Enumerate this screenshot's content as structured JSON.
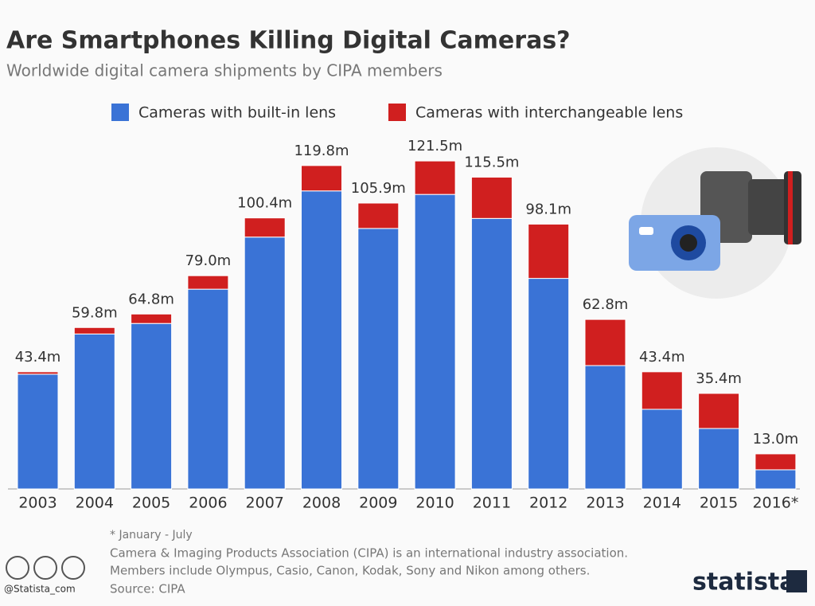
{
  "chart_data": {
    "type": "stacked-bar",
    "title": "Are Smartphones Killing Digital Cameras?",
    "subtitle": "Worldwide digital camera shipments by CIPA members",
    "categories": [
      "2003",
      "2004",
      "2005",
      "2006",
      "2007",
      "2008",
      "2009",
      "2010",
      "2011",
      "2012",
      "2013",
      "2014",
      "2015",
      "2016*"
    ],
    "series": [
      {
        "name": "Cameras with built-in lens",
        "color": "#3a73d6",
        "values": [
          42.5,
          57.4,
          61.3,
          74.0,
          93.3,
          110.4,
          96.5,
          109.1,
          100.2,
          78.0,
          45.7,
          29.5,
          22.4,
          7.1
        ]
      },
      {
        "name": "Cameras with interchangeable lens",
        "color": "#d01f1f",
        "values": [
          0.9,
          2.4,
          3.5,
          5.0,
          7.1,
          9.4,
          9.4,
          12.4,
          15.3,
          20.1,
          17.1,
          13.9,
          13.0,
          5.9
        ]
      }
    ],
    "totals": {
      "values": [
        43.4,
        59.8,
        64.8,
        79.0,
        100.4,
        119.8,
        105.9,
        121.5,
        115.5,
        98.1,
        62.8,
        43.4,
        35.4,
        13.0
      ],
      "value_labels": [
        "43.4m",
        "59.8m",
        "64.8m",
        "79.0m",
        "100.4m",
        "119.8m",
        "105.9m",
        "121.5m",
        "115.5m",
        "98.1m",
        "62.8m",
        "43.4m",
        "35.4m",
        "13.0m"
      ]
    },
    "footnote": "* January - July",
    "notes": [
      "Camera & Imaging Products Association (CIPA) is an international industry association.",
      "Members include Olympus, Casio, Canon, Kodak, Sony and Nikon among others."
    ],
    "source": "Source: CIPA",
    "handle": "@Statista_com",
    "brand": "statista"
  }
}
